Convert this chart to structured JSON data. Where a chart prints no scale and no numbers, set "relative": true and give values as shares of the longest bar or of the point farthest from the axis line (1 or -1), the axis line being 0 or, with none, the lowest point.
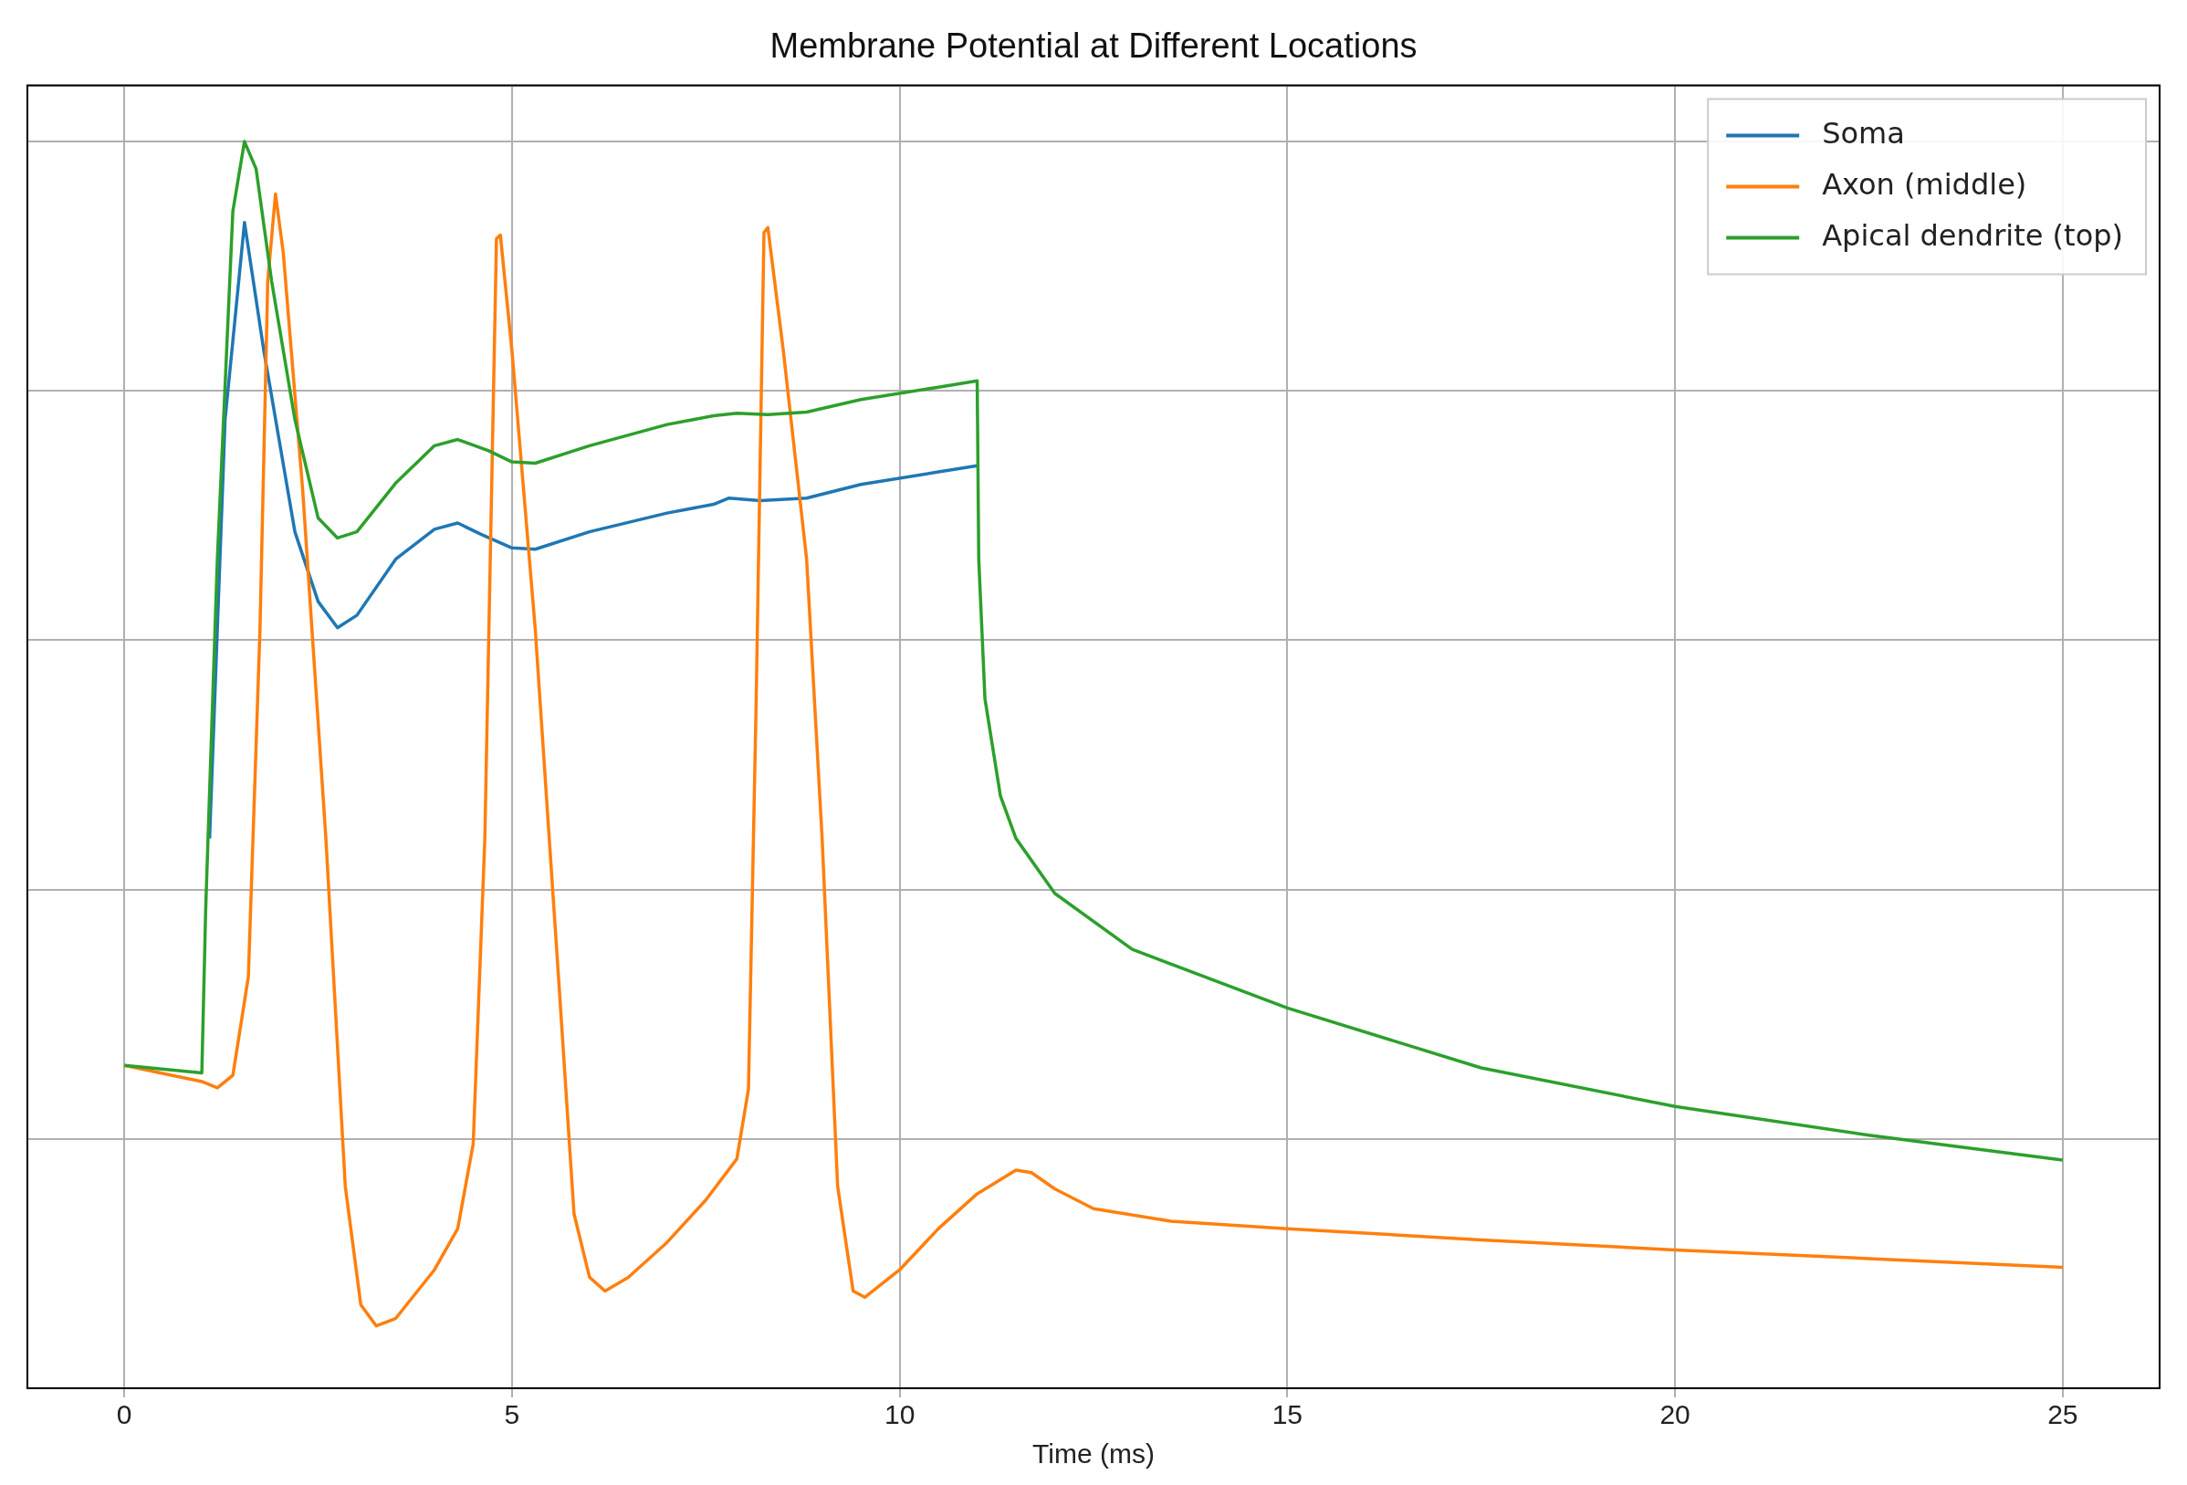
{
  "chart_data": {
    "type": "line",
    "title": "Membrane Potential at Different Locations",
    "xlabel": "Time (ms)",
    "relative": true,
    "xlim": [
      -1.25,
      26.25
    ],
    "xticks": [
      0,
      5,
      10,
      15,
      20,
      25
    ],
    "grid": true,
    "legend": "top right",
    "line_style": "solid",
    "marker": "none",
    "series": [
      {
        "name": "Soma",
        "color": "#1f77b4",
        "x": [
          1.1,
          1.3,
          1.55,
          1.8,
          2.2,
          2.5,
          2.75,
          3.0,
          3.5,
          4.0,
          4.3,
          4.6,
          5.0,
          5.3,
          6,
          7,
          7.6,
          7.8,
          8.2,
          8.8,
          9.5,
          10.5,
          11
        ],
        "values": [
          0.441,
          0.777,
          0.935,
          0.832,
          0.687,
          0.631,
          0.61,
          0.62,
          0.665,
          0.689,
          0.694,
          0.685,
          0.674,
          0.673,
          0.687,
          0.702,
          0.709,
          0.714,
          0.712,
          0.714,
          0.725,
          0.735,
          0.74
        ]
      },
      {
        "name": "Axon (middle)",
        "color": "#ff7f0e",
        "x": [
          0,
          1.0,
          1.2,
          1.4,
          1.6,
          1.75,
          1.85,
          1.95,
          2.05,
          2.3,
          2.6,
          2.85,
          3.05,
          3.25,
          3.5,
          4.0,
          4.3,
          4.5,
          4.65,
          4.8,
          4.85,
          5.0,
          5.3,
          5.6,
          5.8,
          6.0,
          6.2,
          6.5,
          7.0,
          7.5,
          7.9,
          8.05,
          8.15,
          8.25,
          8.3,
          8.5,
          8.8,
          9.0,
          9.2,
          9.4,
          9.55,
          10,
          10.5,
          11.0,
          11.5,
          11.7,
          12,
          12.5,
          13.5,
          15,
          17.5,
          20,
          22.5,
          25
        ],
        "values": [
          0.259,
          0.246,
          0.241,
          0.251,
          0.33,
          0.609,
          0.888,
          0.958,
          0.911,
          0.721,
          0.441,
          0.162,
          0.067,
          0.05,
          0.056,
          0.095,
          0.128,
          0.196,
          0.441,
          0.922,
          0.925,
          0.832,
          0.609,
          0.33,
          0.14,
          0.089,
          0.078,
          0.089,
          0.117,
          0.151,
          0.184,
          0.24,
          0.553,
          0.927,
          0.931,
          0.832,
          0.665,
          0.441,
          0.162,
          0.078,
          0.073,
          0.095,
          0.128,
          0.156,
          0.175,
          0.173,
          0.16,
          0.144,
          0.134,
          0.128,
          0.119,
          0.111,
          0.104,
          0.097
        ]
      },
      {
        "name": "Apical dendrite (top)",
        "color": "#2ca02c",
        "x": [
          0,
          1,
          1.05,
          1.2,
          1.4,
          1.55,
          1.7,
          1.9,
          2.2,
          2.5,
          2.75,
          3.0,
          3.5,
          4.0,
          4.3,
          4.7,
          5.0,
          5.3,
          6,
          7,
          7.6,
          7.9,
          8.3,
          8.8,
          9.5,
          10.5,
          11,
          11.02,
          11.1,
          11.3,
          11.5,
          12,
          13,
          15,
          17.5,
          20,
          22.5,
          25
        ],
        "values": [
          0.259,
          0.253,
          0.385,
          0.665,
          0.944,
          1,
          0.978,
          0.888,
          0.777,
          0.698,
          0.682,
          0.687,
          0.726,
          0.756,
          0.761,
          0.752,
          0.743,
          0.742,
          0.756,
          0.773,
          0.78,
          0.782,
          0.781,
          0.783,
          0.793,
          0.803,
          0.808,
          0.665,
          0.553,
          0.475,
          0.441,
          0.397,
          0.352,
          0.305,
          0.257,
          0.226,
          0.203,
          0.183
        ]
      }
    ]
  }
}
